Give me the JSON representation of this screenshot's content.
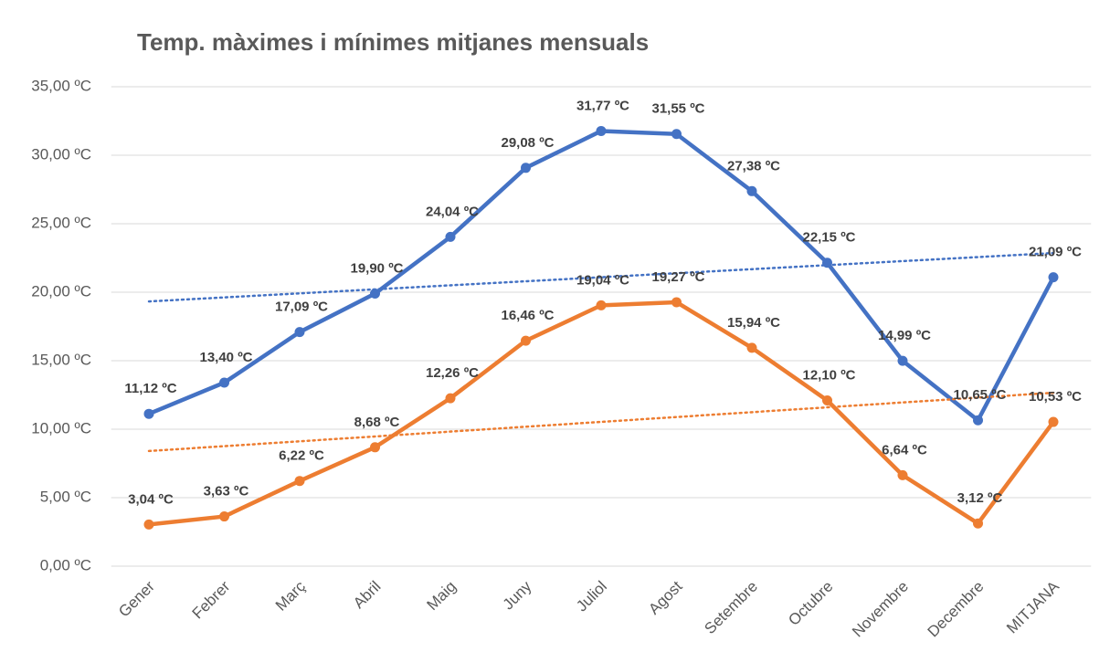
{
  "chart_data": {
    "type": "line",
    "title": "Temp. màximes i mínimes mitjanes mensuals",
    "categories": [
      "Gener",
      "Febrer",
      "Març",
      "Abril",
      "Maig",
      "Juny",
      "Juliol",
      "Agost",
      "Setembre",
      "Octubre",
      "Novembre",
      "Decembre",
      "MITJANA"
    ],
    "series": [
      {
        "color": "#4472c4",
        "values": [
          11.12,
          13.4,
          17.09,
          19.9,
          24.04,
          29.08,
          31.77,
          31.55,
          27.38,
          22.15,
          14.99,
          10.65,
          21.09
        ],
        "value_labels": [
          "11,12 ºC",
          "13,40 ºC",
          "17,09 ºC",
          "19,90 ºC",
          "24,04 ºC",
          "29,08 ºC",
          "31,77 ºC",
          "31,55 ºC",
          "27,38 ºC",
          "22,15 ºC",
          "14,99 ºC",
          "10,65 ºC",
          "21,09 ºC"
        ]
      },
      {
        "color": "#ed7d31",
        "values": [
          3.04,
          3.63,
          6.22,
          8.68,
          12.26,
          16.46,
          19.04,
          19.27,
          15.94,
          12.1,
          6.64,
          3.12,
          10.53
        ],
        "value_labels": [
          "3,04 ºC",
          "3,63 ºC",
          "6,22 ºC",
          "8,68 ºC",
          "12,26 ºC",
          "16,46 ºC",
          "19,04 ºC",
          "19,27 ºC",
          "15,94 ºC",
          "12,10 ºC",
          "6,64 ºC",
          "3,12 ºC",
          "10,53 ºC"
        ]
      }
    ],
    "ylim": [
      0,
      35
    ],
    "yticks": [
      {
        "value": 0,
        "label": "0,00 ºC"
      },
      {
        "value": 5,
        "label": "5,00 ºC"
      },
      {
        "value": 10,
        "label": "10,00 ºC"
      },
      {
        "value": 15,
        "label": "15,00 ºC"
      },
      {
        "value": 20,
        "label": "20,00 ºC"
      },
      {
        "value": 25,
        "label": "25,00 ºC"
      },
      {
        "value": 30,
        "label": "30,00 ºC"
      },
      {
        "value": 35,
        "label": "35,00 ºC"
      }
    ],
    "grid": true,
    "trendline": "linear"
  }
}
